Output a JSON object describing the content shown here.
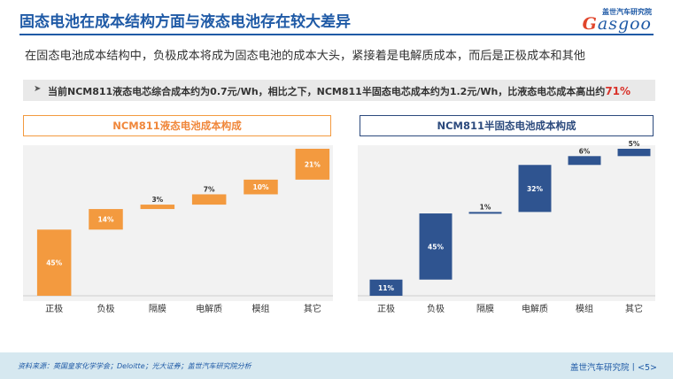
{
  "header": {
    "title": "固态电池在成本结构方面与液态电池存在较大差异",
    "logo_top": "盖世汽车研究院",
    "logo_word_g": "G",
    "logo_word_rest": "asgoo"
  },
  "subtitle": "在固态电池成本结构中，负极成本将成为固态电池的成本大头，紧接着是电解质成本，而后是正极成本和其他",
  "callout": {
    "arrow": "➤",
    "text": "当前NCM811液态电芯综合成本约为0.7元/Wh，相比之下，NCM811半固态电芯成本约为1.2元/Wh，比液态电芯成本高出约",
    "highlight": "71%"
  },
  "chart_data": [
    {
      "type": "bar",
      "title": "NCM811液态电池成本构成",
      "categories": [
        "正极",
        "负极",
        "隔膜",
        "电解质",
        "模组",
        "其它"
      ],
      "values": [
        45,
        14,
        3,
        7,
        10,
        21
      ],
      "labels": [
        "45%",
        "14%",
        "3%",
        "7%",
        "10%",
        "21%"
      ],
      "ylim": [
        0,
        100
      ],
      "color": "#f39a3f",
      "style": "waterfall"
    },
    {
      "type": "bar",
      "title": "NCM811半固态电池成本构成",
      "categories": [
        "正极",
        "负极",
        "隔膜",
        "电解质",
        "模组",
        "其它"
      ],
      "values": [
        11,
        45,
        1,
        32,
        6,
        5
      ],
      "labels": [
        "11%",
        "45%",
        "1%",
        "32%",
        "6%",
        "5%"
      ],
      "ylim": [
        0,
        100
      ],
      "color": "#2f5490",
      "style": "waterfall"
    }
  ],
  "footer": {
    "source": "资料来源：英国皇家化学学会；Deloitte；光大证券；盖世汽车研究院分析",
    "right": "盖世汽车研究院丨<5>"
  }
}
